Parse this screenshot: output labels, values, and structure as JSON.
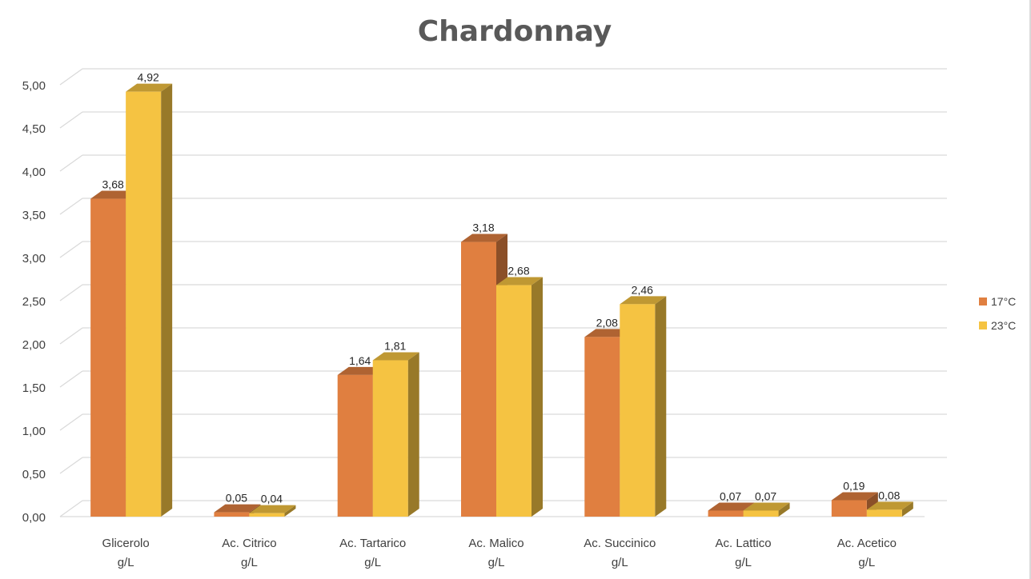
{
  "chart_data": {
    "type": "bar",
    "title": "Chardonnay",
    "categories": [
      [
        "Glicerolo",
        "g/L"
      ],
      [
        "Ac. Citrico",
        "g/L"
      ],
      [
        "Ac. Tartarico",
        "g/L"
      ],
      [
        "Ac. Malico",
        "g/L"
      ],
      [
        "Ac. Succinico",
        "g/L"
      ],
      [
        "Ac. Lattico",
        "g/L"
      ],
      [
        "Ac. Acetico",
        "g/L"
      ]
    ],
    "series": [
      {
        "name": "17°C",
        "values": [
          3.68,
          0.05,
          1.64,
          3.18,
          2.08,
          0.07,
          0.19
        ],
        "labels": [
          "3,68",
          "0,05",
          "1,64",
          "3,18",
          "2,08",
          "0,07",
          "0,19"
        ]
      },
      {
        "name": "23°C",
        "values": [
          4.92,
          0.04,
          1.81,
          2.68,
          2.46,
          0.07,
          0.08
        ],
        "labels": [
          "4,92",
          "0,04",
          "1,81",
          "2,68",
          "2,46",
          "0,07",
          "0,08"
        ]
      }
    ],
    "yticks": [
      "0,00",
      "0,50",
      "1,00",
      "1,50",
      "2,00",
      "2,50",
      "3,00",
      "3,50",
      "4,00",
      "4,50",
      "5,00"
    ],
    "ylim": [
      0,
      5
    ],
    "xlabel": "",
    "ylabel": "",
    "grid": true,
    "three_d": true,
    "legend": "right",
    "colors": {
      "17°C": "#E07F40",
      "23°C": "#F5C342"
    }
  }
}
